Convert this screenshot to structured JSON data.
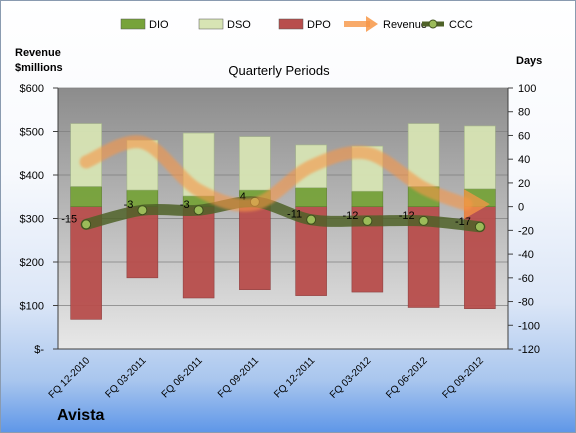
{
  "company": "Avista",
  "chart_data": {
    "type": "bar",
    "title": "Quarterly Periods",
    "left_axis_label_line1": "Revenue",
    "left_axis_label_line2": "$millions",
    "right_axis_label": "Days",
    "left_ylim": [
      0,
      600
    ],
    "right_ylim": [
      -120,
      100
    ],
    "left_ticks": [
      "$-",
      "$100",
      "$200",
      "$300",
      "$400",
      "$500",
      "$600"
    ],
    "right_ticks": [
      "-120",
      "-100",
      "-80",
      "-60",
      "-40",
      "-20",
      "0",
      "20",
      "40",
      "60",
      "80",
      "100"
    ],
    "categories": [
      "FQ 12-2010",
      "FQ 03-2011",
      "FQ 06-2011",
      "FQ 09-2011",
      "FQ 12-2011",
      "FQ 03-2012",
      "FQ 06-2012",
      "FQ 09-2012"
    ],
    "legend_position": "top",
    "series": [
      {
        "name": "DIO",
        "type": "stacked-bar",
        "color": "#77a33a",
        "values": [
          17,
          14,
          9,
          14,
          16,
          13,
          17,
          15
        ]
      },
      {
        "name": "DSO",
        "type": "stacked-bar",
        "color": "#d7e4b4",
        "values": [
          53,
          42,
          53,
          45,
          36,
          38,
          53,
          53
        ]
      },
      {
        "name": "DPO",
        "type": "stacked-bar",
        "color": "#b84e4c",
        "values": [
          -95,
          -60,
          -77,
          -70,
          -75,
          -72,
          -85,
          -86
        ]
      },
      {
        "name": "Revenue",
        "type": "line",
        "color": "#f79646",
        "values": [
          430,
          475,
          365,
          333,
          420,
          450,
          370,
          333
        ]
      },
      {
        "name": "CCC",
        "type": "line",
        "color": "#4f6228",
        "values": [
          -15,
          -3,
          -3,
          4,
          -11,
          -12,
          -12,
          -17
        ]
      }
    ]
  }
}
